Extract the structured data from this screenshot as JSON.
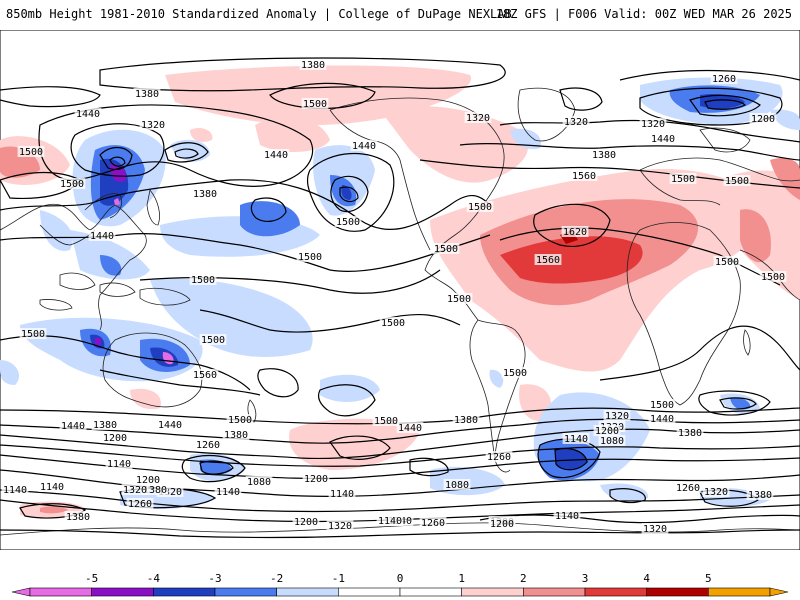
{
  "header": {
    "title": "850mb Height 1981-2010 Standardized Anomaly | College of DuPage NEXLAB",
    "run_info": "18Z GFS | F006 Valid: 00Z WED MAR 26 2025"
  },
  "colors": {
    "-5": "#e76be7",
    "-4": "#8a10c8",
    "-3": "#1f3fc0",
    "-2": "#4a7cf0",
    "-1": "#c8dcff",
    "1": "#ffd0d0",
    "2": "#f29090",
    "3": "#e23a3a",
    "4": "#b00000",
    "5": "#f3a000",
    "contour": "#000000",
    "land": "#222222"
  },
  "colorbar": {
    "ticks": [
      "-5",
      "-4",
      "-3",
      "-2",
      "-1",
      "0",
      "1",
      "2",
      "3",
      "4",
      "5"
    ]
  },
  "contour_labels": [
    {
      "id": "c1",
      "text": "1380"
    },
    {
      "id": "c2",
      "text": "1500"
    },
    {
      "id": "c3",
      "text": "1380"
    },
    {
      "id": "c4",
      "text": "1440"
    },
    {
      "id": "c5",
      "text": "1320"
    },
    {
      "id": "c6",
      "text": "1440"
    },
    {
      "id": "c7",
      "text": "1440"
    },
    {
      "id": "c8",
      "text": "1380"
    },
    {
      "id": "c9",
      "text": "1500"
    },
    {
      "id": "c10",
      "text": "1440"
    },
    {
      "id": "c11",
      "text": "1500"
    },
    {
      "id": "c12",
      "text": "1500"
    },
    {
      "id": "c13",
      "text": "1320"
    },
    {
      "id": "c14",
      "text": "1320"
    },
    {
      "id": "c15",
      "text": "1260"
    },
    {
      "id": "c16",
      "text": "1200"
    },
    {
      "id": "c17",
      "text": "1320"
    },
    {
      "id": "c18",
      "text": "1380"
    },
    {
      "id": "c19",
      "text": "1440"
    },
    {
      "id": "c20",
      "text": "1500"
    },
    {
      "id": "c21",
      "text": "1500"
    },
    {
      "id": "c22",
      "text": "1560"
    },
    {
      "id": "c23",
      "text": "1620"
    },
    {
      "id": "c24",
      "text": "1560"
    },
    {
      "id": "c25",
      "text": "1500"
    },
    {
      "id": "c26",
      "text": "1500"
    },
    {
      "id": "c27",
      "text": "1500"
    },
    {
      "id": "c28",
      "text": "1500"
    },
    {
      "id": "c29",
      "text": "1500"
    },
    {
      "id": "c30",
      "text": "1500"
    },
    {
      "id": "c31",
      "text": "1500"
    },
    {
      "id": "c32",
      "text": "1500"
    },
    {
      "id": "c33",
      "text": "1500"
    },
    {
      "id": "c34",
      "text": "1560"
    },
    {
      "id": "c35",
      "text": "1500"
    },
    {
      "id": "c36",
      "text": "1500"
    },
    {
      "id": "c37",
      "text": "1500"
    },
    {
      "id": "c38",
      "text": "1440"
    },
    {
      "id": "c39",
      "text": "1380"
    },
    {
      "id": "c40",
      "text": "1500"
    },
    {
      "id": "c41",
      "text": "1440"
    },
    {
      "id": "c42",
      "text": "1380"
    },
    {
      "id": "c43",
      "text": "1320"
    },
    {
      "id": "c44",
      "text": "1320"
    },
    {
      "id": "c45",
      "text": "1200"
    },
    {
      "id": "c46",
      "text": "1080"
    },
    {
      "id": "c47",
      "text": "1140"
    },
    {
      "id": "c48",
      "text": "1260"
    },
    {
      "id": "c49",
      "text": "1200"
    },
    {
      "id": "c50",
      "text": "1140"
    },
    {
      "id": "c51",
      "text": "1080"
    },
    {
      "id": "c52",
      "text": "1140"
    },
    {
      "id": "c53",
      "text": "1200"
    },
    {
      "id": "c54",
      "text": "1320"
    },
    {
      "id": "c55",
      "text": "1440"
    },
    {
      "id": "c56",
      "text": "1380"
    },
    {
      "id": "c57",
      "text": "1440"
    },
    {
      "id": "c58",
      "text": "1380"
    },
    {
      "id": "c59",
      "text": "1200"
    },
    {
      "id": "c60",
      "text": "1260"
    },
    {
      "id": "c61",
      "text": "1140"
    },
    {
      "id": "c62",
      "text": "1140"
    },
    {
      "id": "c63",
      "text": "1200"
    },
    {
      "id": "c64",
      "text": "1380"
    },
    {
      "id": "c65",
      "text": "1320"
    },
    {
      "id": "c66",
      "text": "1260"
    },
    {
      "id": "c67",
      "text": "1140"
    },
    {
      "id": "c68",
      "text": "1080"
    },
    {
      "id": "c69",
      "text": "1380"
    },
    {
      "id": "c70",
      "text": "1200"
    },
    {
      "id": "c71",
      "text": "1320"
    },
    {
      "id": "c72",
      "text": "1140"
    },
    {
      "id": "c73",
      "text": "1260"
    },
    {
      "id": "c74",
      "text": "1200"
    },
    {
      "id": "c75",
      "text": "1140"
    },
    {
      "id": "c76",
      "text": "1320"
    },
    {
      "id": "c77",
      "text": "1260"
    },
    {
      "id": "c78",
      "text": "1320"
    },
    {
      "id": "c79",
      "text": "1380"
    },
    {
      "id": "c80",
      "text": "1140"
    },
    {
      "id": "c81",
      "text": "1500"
    }
  ]
}
